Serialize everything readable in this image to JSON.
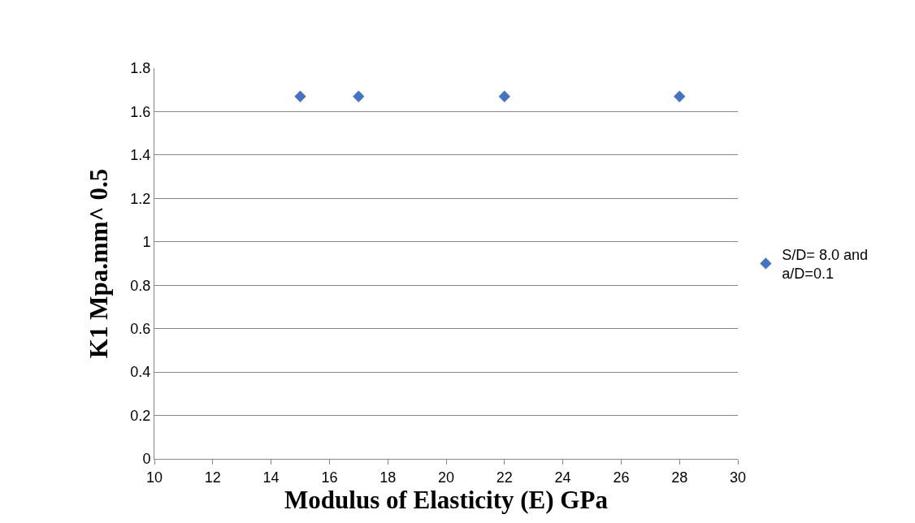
{
  "chart_data": {
    "type": "scatter",
    "xlabel": "Modulus of Elasticity (E) GPa",
    "ylabel": "K1 Mpa.mm^ 0.5",
    "x": [
      15,
      17,
      22,
      28
    ],
    "series": [
      {
        "name": "S/D= 8.0 and a/D=0.1",
        "color": "#4472c4",
        "values": [
          1.67,
          1.67,
          1.67,
          1.67
        ]
      }
    ],
    "xlim": [
      10,
      30
    ],
    "xticks": [
      10,
      12,
      14,
      16,
      18,
      20,
      22,
      24,
      26,
      28,
      30
    ],
    "ylim": [
      0,
      1.8
    ],
    "yticks": [
      0,
      0.2,
      0.4,
      0.6,
      0.8,
      1,
      1.2,
      1.4,
      1.6,
      1.8
    ],
    "grid": "y",
    "legend": "right",
    "marker": "diamond"
  }
}
